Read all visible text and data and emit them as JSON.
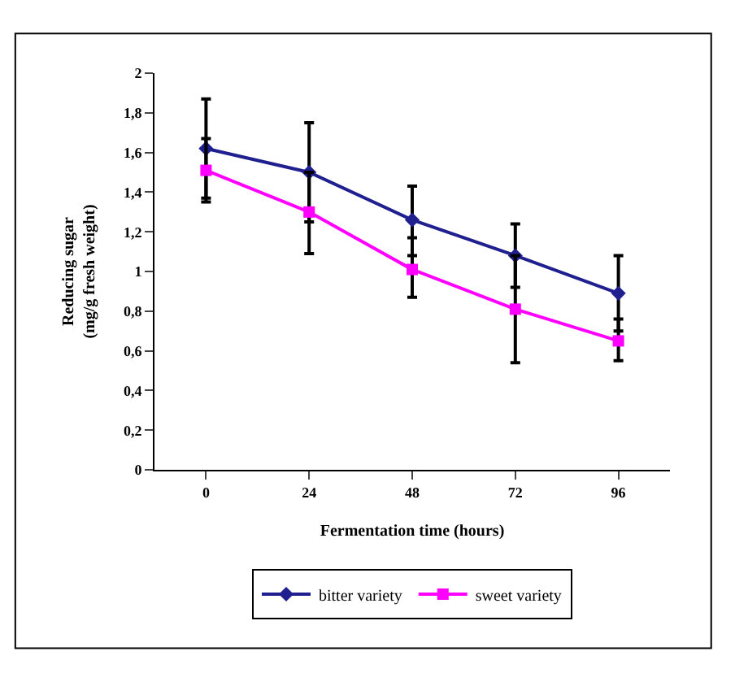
{
  "chart_data": {
    "type": "line",
    "xlabel": "Fermentation time (hours)",
    "ylabel": "Reducing sugar\n(mg/g fresh weight)",
    "categories": [
      "0",
      "24",
      "48",
      "72",
      "96"
    ],
    "ylim": [
      0,
      2
    ],
    "yticks": [
      0,
      {
        "value": 0.2,
        "label": "0,2"
      },
      {
        "value": 0.4,
        "label": "0,4"
      },
      {
        "value": 0.6,
        "label": "0,6"
      },
      {
        "value": 0.8,
        "label": "0,8"
      },
      1,
      {
        "value": 1.2,
        "label": "1,2"
      },
      {
        "value": 1.4,
        "label": "1,4"
      },
      {
        "value": 1.6,
        "label": "1,6"
      },
      {
        "value": 1.8,
        "label": "1,8"
      },
      2
    ],
    "legend": "bottom",
    "line_style": "solid",
    "series": [
      {
        "name": "bitter variety",
        "color": "#1f1f8f",
        "marker": "diamond",
        "values": [
          1.62,
          1.5,
          1.26,
          1.08,
          0.89
        ],
        "errors": [
          [
            1.37,
            1.87
          ],
          [
            1.25,
            1.75
          ],
          [
            1.08,
            1.43
          ],
          [
            0.92,
            1.24
          ],
          [
            0.7,
            1.08
          ]
        ]
      },
      {
        "name": "sweet variety",
        "color": "#ff00ff",
        "marker": "square",
        "values": [
          1.51,
          1.3,
          1.01,
          0.81,
          0.65
        ],
        "errors": [
          [
            1.35,
            1.67
          ],
          [
            1.09,
            1.5
          ],
          [
            0.87,
            1.17
          ],
          [
            0.54,
            1.08
          ],
          [
            0.55,
            0.76
          ]
        ]
      }
    ]
  }
}
